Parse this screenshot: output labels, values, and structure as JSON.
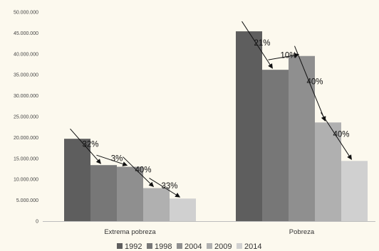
{
  "chart_data": {
    "type": "bar",
    "categories": [
      "Extrema pobreza",
      "Pobreza"
    ],
    "series": [
      {
        "name": "1992",
        "color": "#5e5e5e",
        "values": [
          19700000,
          45400000
        ]
      },
      {
        "name": "1998",
        "color": "#777777",
        "values": [
          13400000,
          36200000
        ]
      },
      {
        "name": "2004",
        "color": "#8f8f8f",
        "values": [
          13000000,
          39500000
        ]
      },
      {
        "name": "2009",
        "color": "#b0b0b0",
        "values": [
          7900000,
          23600000
        ]
      },
      {
        "name": "2014",
        "color": "#d0d0d0",
        "values": [
          5400000,
          14400000
        ]
      }
    ],
    "yticks": [
      "0",
      "5.000.000",
      "10.000.000",
      "15.000.000",
      "20.000.000",
      "25.000.000",
      "30.000.000",
      "35.000.000",
      "40.000.000",
      "45.000.000",
      "50.000.000"
    ],
    "ylim": [
      0,
      50000000
    ],
    "annotations": [
      {
        "category": 0,
        "from": 0,
        "to": 1,
        "label": "32%"
      },
      {
        "category": 0,
        "from": 1,
        "to": 2,
        "label": "3%"
      },
      {
        "category": 0,
        "from": 2,
        "to": 3,
        "label": "40%"
      },
      {
        "category": 0,
        "from": 3,
        "to": 4,
        "label": "33%"
      },
      {
        "category": 1,
        "from": 0,
        "to": 1,
        "label": "21%"
      },
      {
        "category": 1,
        "from": 1,
        "to": 2,
        "label": "10%"
      },
      {
        "category": 1,
        "from": 2,
        "to": 3,
        "label": "40%"
      },
      {
        "category": 1,
        "from": 3,
        "to": 4,
        "label": "40%"
      }
    ],
    "legend_position": "bottom",
    "grid": false
  }
}
